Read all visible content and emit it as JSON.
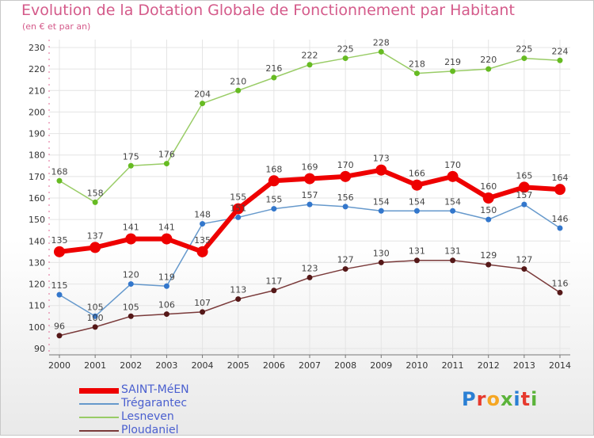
{
  "chart_data": {
    "type": "line",
    "title": "Evolution de la Dotation Globale de Fonctionnement par Habitant",
    "subtitle": "(en € et par an)",
    "x": [
      "2000",
      "2001",
      "2002",
      "2003",
      "2004",
      "2005",
      "2006",
      "2007",
      "2008",
      "2009",
      "2010",
      "2011",
      "2012",
      "2013",
      "2014"
    ],
    "ylim": [
      90,
      230
    ],
    "yticks": [
      90,
      100,
      110,
      120,
      130,
      140,
      150,
      160,
      170,
      180,
      190,
      200,
      210,
      220,
      230
    ],
    "series": [
      {
        "name": "Lesneven",
        "color": "#99cc66",
        "dot": "#66bb22",
        "width": 1.5,
        "dotr": 3.5,
        "labelPos": "above",
        "values": [
          168,
          158,
          175,
          176,
          204,
          210,
          216,
          222,
          225,
          228,
          218,
          219,
          220,
          225,
          224
        ]
      },
      {
        "name": "Trégarantec",
        "color": "#6699cc",
        "dot": "#3377cc",
        "width": 1.5,
        "dotr": 3.5,
        "labelPos": "above",
        "values": [
          115,
          105,
          120,
          119,
          148,
          151,
          155,
          157,
          156,
          154,
          154,
          154,
          150,
          157,
          146
        ]
      },
      {
        "name": "Ploudaniel",
        "color": "#7a3a3a",
        "dot": "#551818",
        "width": 1.5,
        "dotr": 3.5,
        "labelPos": "above",
        "values": [
          96,
          100,
          105,
          106,
          107,
          113,
          117,
          123,
          127,
          130,
          131,
          131,
          129,
          127,
          116
        ]
      },
      {
        "name": "SAINT-MéEN",
        "color": "#ee0000",
        "dot": "#ee0000",
        "width": 6,
        "dotr": 7,
        "labelPos": "above",
        "values": [
          135,
          137,
          141,
          141,
          135,
          155,
          168,
          169,
          170,
          173,
          166,
          170,
          160,
          165,
          164
        ]
      }
    ]
  },
  "legend": [
    {
      "name": "SAINT-MéEN",
      "color": "#ee0000",
      "thickness": 7
    },
    {
      "name": "Trégarantec",
      "color": "#6699cc",
      "thickness": 2
    },
    {
      "name": "Lesneven",
      "color": "#99cc66",
      "thickness": 2
    },
    {
      "name": "Ploudaniel",
      "color": "#7a3a3a",
      "thickness": 2
    }
  ],
  "logo": {
    "letters": [
      "P",
      "r",
      "o",
      "x",
      "i",
      "t",
      "i"
    ],
    "colors": [
      "#2a7fd4",
      "#e63a2e",
      "#f5a623",
      "#5bb33a",
      "#2a7fd4",
      "#e63a2e",
      "#5bb33a"
    ]
  }
}
